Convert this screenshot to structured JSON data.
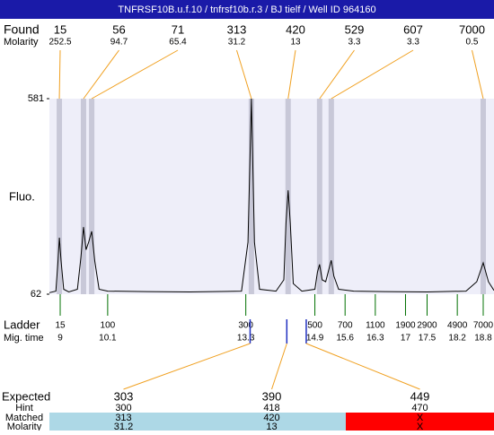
{
  "title": "TNFRSF10B.u.f.10 / tnfrsf10b.r.3 / BJ tielf / Well ID 964160",
  "found": {
    "label": "Found",
    "molarity_label": "Molarity",
    "sizes": [
      15,
      56,
      71,
      313,
      420,
      529,
      607,
      7000
    ],
    "molarity": [
      252.5,
      94.7,
      65.4,
      31.2,
      13,
      3.3,
      3.3,
      0.5
    ]
  },
  "chart_data": {
    "type": "line",
    "ylabel": "Fluo.",
    "xlim": [
      8.75,
      19.05
    ],
    "ylim": [
      62,
      581
    ],
    "yticks": [
      62,
      581
    ],
    "x": [
      8.75,
      8.9,
      8.95,
      8.98,
      9.02,
      9.08,
      9.2,
      9.4,
      9.48,
      9.54,
      9.6,
      9.66,
      9.73,
      9.8,
      9.9,
      10.1,
      11,
      12,
      13.2,
      13.35,
      13.43,
      13.5,
      13.62,
      14.0,
      14.18,
      14.23,
      14.28,
      14.33,
      14.4,
      14.6,
      14.9,
      14.96,
      15.01,
      15.07,
      15.15,
      15.23,
      15.28,
      15.34,
      15.45,
      15.8,
      16.5,
      17.5,
      18.4,
      18.65,
      18.8,
      18.92,
      19.05
    ],
    "values": [
      66,
      70,
      150,
      212,
      150,
      75,
      68,
      75,
      160,
      240,
      180,
      200,
      229,
      150,
      75,
      70,
      69,
      68,
      70,
      200,
      581,
      200,
      75,
      70,
      100,
      250,
      338,
      250,
      90,
      70,
      75,
      120,
      141,
      100,
      95,
      130,
      152,
      110,
      75,
      70,
      69,
      68,
      70,
      95,
      145,
      95,
      72
    ],
    "color": "#000000",
    "background": "#eeeef9",
    "band_color": "#c8c8d8",
    "connector_color": "#f0a020",
    "peaks_x": [
      8.98,
      9.54,
      9.73,
      13.43,
      14.28,
      15.01,
      15.28,
      18.8
    ]
  },
  "ladder": {
    "label": "Ladder",
    "time_label": "Mig. time",
    "color": "#007000",
    "sizes": [
      15,
      100,
      300,
      500,
      700,
      1100,
      1900,
      2900,
      4900,
      7000
    ],
    "times": [
      9,
      10.1,
      13.3,
      14.9,
      15.6,
      16.3,
      17,
      17.5,
      18.2,
      18.8
    ]
  },
  "expected": {
    "label": "Expected",
    "hint_label": "Hint",
    "matched_label": "Matched",
    "molarity_label": "Molarity",
    "sizes": [
      303,
      390,
      449
    ],
    "x": [
      13.4,
      14.25,
      14.7
    ],
    "marker_color": "#2030c0",
    "hint": [
      300,
      418,
      470
    ],
    "matched": [
      313,
      420,
      "X"
    ],
    "molarity": [
      31.2,
      13,
      "X"
    ],
    "ok_color": "#add8e6",
    "fail_color": "#ff0000"
  }
}
